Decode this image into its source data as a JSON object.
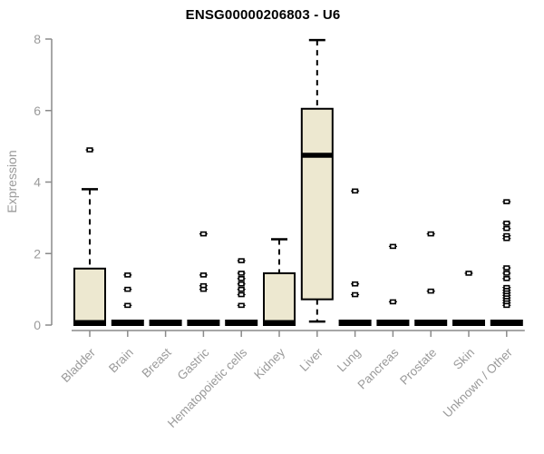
{
  "chart_data": {
    "type": "boxplot",
    "title": "ENSG00000206803 - U6",
    "ylabel": "Expression",
    "xlabel": "",
    "ylim": [
      0,
      8
    ],
    "yticks": [
      0,
      2,
      4,
      6,
      8
    ],
    "grid": false,
    "legend": false,
    "categories": [
      "Bladder",
      "Brain",
      "Breast",
      "Gastric",
      "Hematopoietic cells",
      "Kidney",
      "Liver",
      "Lung",
      "Pancreas",
      "Prostate",
      "Skin",
      "Unknown / Other"
    ],
    "boxes": [
      {
        "category": "Bladder",
        "whisker_low": 0,
        "q1": 0,
        "median": 0.07,
        "q3": 1.58,
        "whisker_high": 3.8,
        "outliers": [
          4.9
        ]
      },
      {
        "category": "Brain",
        "whisker_low": 0,
        "q1": 0,
        "median": 0,
        "q3": 0,
        "whisker_high": 0,
        "outliers": [
          1.4,
          1.0,
          0.55
        ]
      },
      {
        "category": "Breast",
        "whisker_low": 0,
        "q1": 0,
        "median": 0,
        "q3": 0,
        "whisker_high": 0,
        "outliers": []
      },
      {
        "category": "Gastric",
        "whisker_low": 0,
        "q1": 0,
        "median": 0,
        "q3": 0,
        "whisker_high": 0,
        "outliers": [
          2.55,
          1.4,
          1.1,
          1.0
        ]
      },
      {
        "category": "Hematopoietic cells",
        "whisker_low": 0,
        "q1": 0,
        "median": 0,
        "q3": 0,
        "whisker_high": 0,
        "outliers": [
          1.8,
          1.45,
          1.3,
          1.15,
          1.0,
          0.85,
          0.55
        ]
      },
      {
        "category": "Kidney",
        "whisker_low": 0,
        "q1": 0,
        "median": 0.07,
        "q3": 1.45,
        "whisker_high": 2.4,
        "outliers": []
      },
      {
        "category": "Liver",
        "whisker_low": 0.1,
        "q1": 0.72,
        "median": 4.75,
        "q3": 6.05,
        "whisker_high": 7.97,
        "outliers": []
      },
      {
        "category": "Lung",
        "whisker_low": 0,
        "q1": 0,
        "median": 0,
        "q3": 0,
        "whisker_high": 0,
        "outliers": [
          3.75,
          1.15,
          0.85
        ]
      },
      {
        "category": "Pancreas",
        "whisker_low": 0,
        "q1": 0,
        "median": 0,
        "q3": 0,
        "whisker_high": 0,
        "outliers": [
          2.2,
          0.65
        ]
      },
      {
        "category": "Prostate",
        "whisker_low": 0,
        "q1": 0,
        "median": 0,
        "q3": 0,
        "whisker_high": 0,
        "outliers": [
          2.55,
          0.95
        ]
      },
      {
        "category": "Skin",
        "whisker_low": 0,
        "q1": 0,
        "median": 0,
        "q3": 0,
        "whisker_high": 0,
        "outliers": [
          1.45
        ]
      },
      {
        "category": "Unknown / Other",
        "whisker_low": 0,
        "q1": 0,
        "median": 0,
        "q3": 0,
        "whisker_high": 0,
        "outliers": [
          3.45,
          2.85,
          2.7,
          2.5,
          2.42,
          1.6,
          1.45,
          1.3,
          1.05,
          0.97,
          0.9,
          0.83,
          0.76,
          0.69,
          0.62,
          0.55
        ]
      }
    ],
    "colors": {
      "box_fill": "#ede8d0",
      "box_stroke": "#000000",
      "axis": "#8a8a8a",
      "tick_label": "#9a9a9a",
      "title": "#000000"
    }
  }
}
